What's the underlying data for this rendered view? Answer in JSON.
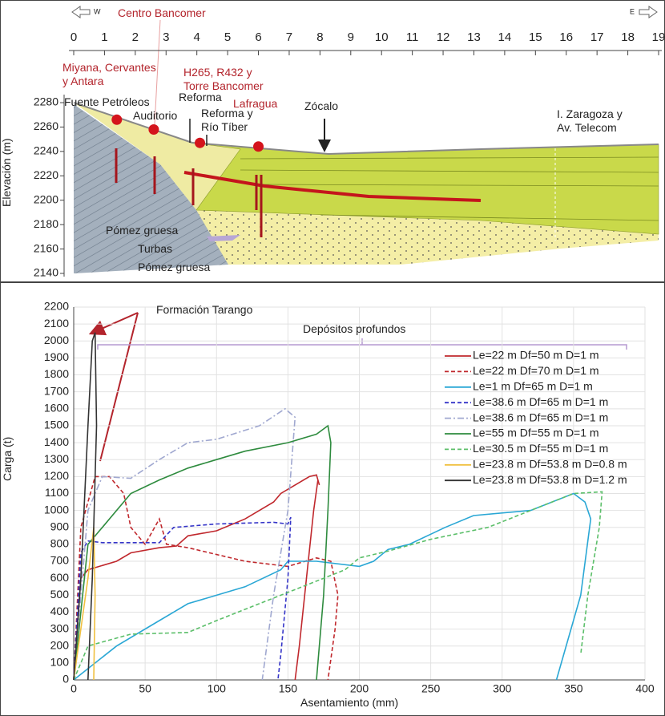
{
  "chart_data": [
    {
      "type": "section",
      "ylabel": "Elevación (m)",
      "compass": [
        "W",
        "E"
      ],
      "xlim": [
        0,
        19
      ],
      "xticks": [
        0,
        1,
        2,
        3,
        4,
        5,
        6,
        7,
        8,
        9,
        10,
        11,
        12,
        13,
        14,
        15,
        16,
        17,
        18,
        19
      ],
      "ylim": [
        2140,
        2280
      ],
      "yticks": [
        2140,
        2160,
        2180,
        2200,
        2220,
        2240,
        2260,
        2280
      ],
      "grid": false,
      "series": [
        {
          "name": "Miyana, Cervantes\ny Antara",
          "color": "#d4141c",
          "x": [
            1.4
          ],
          "values": [
            2266
          ]
        },
        {
          "name": "Centro Bancomer",
          "color": "#d4141c",
          "x": [
            2.6
          ],
          "values": [
            2258
          ]
        },
        {
          "name": "H265, R432 y\nTorre Bancomer",
          "color": "#d4141c",
          "x": [
            4.1
          ],
          "values": [
            2247
          ]
        },
        {
          "name": "Lafragua",
          "color": "#d4141c",
          "x": [
            6.0
          ],
          "values": [
            2244
          ]
        }
      ],
      "annotations": [
        "Fuente Petróleos",
        "Auditorio",
        "Reforma",
        "Reforma y\nRío Tíber",
        "Zócalo",
        "I. Zaragoza y\nAv. Telecom",
        "Pómez gruesa",
        "Turbas",
        "Pómez gruesa"
      ]
    },
    {
      "type": "line",
      "xlabel": "Asentamiento (mm)",
      "ylabel": "Carga (t)",
      "xlim": [
        0,
        400
      ],
      "xticks": [
        0,
        50,
        100,
        150,
        200,
        250,
        300,
        350,
        400
      ],
      "ylim": [
        0,
        2200
      ],
      "yticks": [
        0,
        100,
        200,
        300,
        400,
        500,
        600,
        700,
        800,
        900,
        1000,
        1100,
        1200,
        1300,
        1400,
        1500,
        1600,
        1700,
        1800,
        1900,
        2000,
        2100,
        2200
      ],
      "grid": true,
      "legend": "upper right",
      "annotations": [
        "Formación Tarango",
        "Depósitos profundos"
      ],
      "series": [
        {
          "name": "Le=22 m Df=50 m D=1 m",
          "color": "#c0282d",
          "style": "solid",
          "x": [
            0,
            5,
            10,
            30,
            40,
            60,
            72,
            80,
            100,
            120,
            140,
            145,
            155,
            165,
            170,
            172,
            171,
            168,
            163,
            158,
            155
          ],
          "values": [
            0,
            600,
            650,
            700,
            750,
            780,
            790,
            850,
            880,
            950,
            1050,
            1100,
            1150,
            1200,
            1210,
            1150,
            1180,
            1000,
            600,
            200,
            0
          ]
        },
        {
          "name": "Le=22 m Df=70 m D=1 m",
          "color": "#c0282d",
          "style": "dashed",
          "x": [
            0,
            5,
            15,
            25,
            35,
            40,
            50,
            60,
            65,
            80,
            120,
            150,
            170,
            180,
            185,
            183,
            178
          ],
          "values": [
            0,
            900,
            1200,
            1200,
            1100,
            900,
            800,
            950,
            800,
            780,
            700,
            670,
            720,
            700,
            500,
            300,
            0
          ]
        },
        {
          "name": "Le=1 m Df=65 m D=1 m",
          "color": "#2aa7d5",
          "style": "solid",
          "x": [
            0,
            30,
            60,
            80,
            120,
            145,
            150,
            170,
            200,
            210,
            220,
            235,
            260,
            280,
            320,
            350,
            358,
            362,
            355,
            338
          ],
          "values": [
            0,
            200,
            350,
            450,
            550,
            650,
            700,
            700,
            670,
            700,
            770,
            800,
            900,
            970,
            1000,
            1100,
            1050,
            950,
            500,
            0
          ]
        },
        {
          "name": "Le=38.6 m Df=65 m D=1 m",
          "color": "#3535c8",
          "style": "dashed",
          "x": [
            0,
            5,
            10,
            20,
            60,
            70,
            100,
            140,
            150,
            152,
            150,
            145,
            143
          ],
          "values": [
            0,
            750,
            820,
            810,
            810,
            900,
            920,
            930,
            920,
            960,
            600,
            150,
            0
          ]
        },
        {
          "name": "Le=38.6 m Df=65 m D=1 m",
          "color": "#a0a8d0",
          "style": "dashdot",
          "x": [
            0,
            10,
            20,
            40,
            60,
            80,
            100,
            130,
            148,
            155,
            150,
            140,
            132
          ],
          "values": [
            0,
            1000,
            1200,
            1190,
            1300,
            1400,
            1420,
            1500,
            1600,
            1550,
            1000,
            500,
            0
          ]
        },
        {
          "name": "Le=55 m Df=55 m D=1 m",
          "color": "#2e8b3e",
          "style": "solid",
          "x": [
            0,
            10,
            20,
            40,
            60,
            80,
            100,
            120,
            150,
            170,
            178,
            180,
            178,
            175,
            170
          ],
          "values": [
            0,
            800,
            900,
            1100,
            1180,
            1250,
            1300,
            1350,
            1400,
            1450,
            1500,
            1400,
            1000,
            500,
            0
          ]
        },
        {
          "name": "Le=30.5 m Df=55 m D=1 m",
          "color": "#5cbf6a",
          "style": "dashed",
          "x": [
            0,
            10,
            40,
            80,
            100,
            130,
            160,
            190,
            200,
            220,
            250,
            290,
            320,
            350,
            370,
            368,
            360,
            355
          ],
          "values": [
            0,
            200,
            270,
            280,
            350,
            450,
            550,
            650,
            720,
            760,
            830,
            900,
            1000,
            1100,
            1110,
            900,
            500,
            150
          ]
        },
        {
          "name": "Le=23.8 m Df=53.8 m D=0.8 m",
          "color": "#f0c040",
          "style": "solid",
          "x": [
            0,
            10,
            14,
            15,
            14
          ],
          "values": [
            0,
            600,
            900,
            500,
            0
          ]
        },
        {
          "name": "Le=23.8 m Df=53.8 m D=1.2 m",
          "color": "#333333",
          "style": "solid",
          "x": [
            0,
            5,
            10,
            13,
            15,
            16,
            13,
            10
          ],
          "values": [
            0,
            600,
            1500,
            2000,
            2050,
            1500,
            600,
            0
          ]
        }
      ]
    }
  ]
}
